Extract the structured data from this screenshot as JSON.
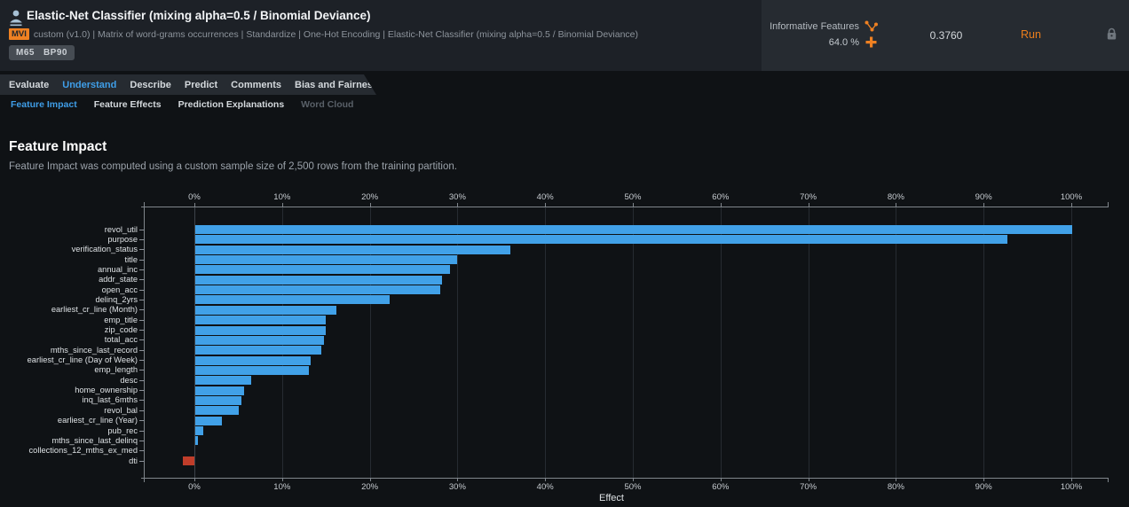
{
  "header": {
    "title": "Elastic-Net Classifier (mixing alpha=0.5 / Binomial Deviance)",
    "mvi_badge": "MVI",
    "blueprint": "custom (v1.0) | Matrix of word-grams occurrences | Standardize | One-Hot Encoding | Elastic-Net Classifier (mixing alpha=0.5 / Binomial Deviance)",
    "model_badges": [
      "M65",
      "BP90"
    ],
    "featurelist_label": "Informative Features",
    "sample_size_pct": "64.0 %",
    "metric_value": "0.3760",
    "run_label": "Run"
  },
  "tabs": [
    {
      "label": "Evaluate",
      "active": false
    },
    {
      "label": "Understand",
      "active": true
    },
    {
      "label": "Describe",
      "active": false
    },
    {
      "label": "Predict",
      "active": false
    },
    {
      "label": "Comments",
      "active": false
    },
    {
      "label": "Bias and Fairness",
      "active": false
    }
  ],
  "subtabs": [
    {
      "label": "Feature Impact",
      "state": "active"
    },
    {
      "label": "Feature Effects",
      "state": "normal"
    },
    {
      "label": "Prediction Explanations",
      "state": "normal"
    },
    {
      "label": "Word Cloud",
      "state": "disabled"
    }
  ],
  "section": {
    "title": "Feature Impact",
    "description": "Feature Impact was computed using a custom sample size of 2,500 rows from the training partition."
  },
  "chart_data": {
    "type": "bar",
    "orientation": "horizontal",
    "title": "Feature Impact",
    "xlabel": "Effect",
    "ylabel": "",
    "x_ticks": [
      "0%",
      "10%",
      "20%",
      "30%",
      "40%",
      "50%",
      "60%",
      "70%",
      "80%",
      "90%",
      "100%"
    ],
    "xlim_pct": [
      -5.8,
      104
    ],
    "grid": true,
    "bar_color": "#41a1e8",
    "negative_bar_color": "#c03d2a",
    "categories": [
      "revol_util",
      "purpose",
      "verification_status",
      "title",
      "annual_inc",
      "addr_state",
      "open_acc",
      "delinq_2yrs",
      "earliest_cr_line (Month)",
      "emp_title",
      "zip_code",
      "total_acc",
      "mths_since_last_record",
      "earliest_cr_line (Day of Week)",
      "emp_length",
      "desc",
      "home_ownership",
      "inq_last_6mths",
      "revol_bal",
      "earliest_cr_line (Year)",
      "pub_rec",
      "mths_since_last_delinq",
      "collections_12_mths_ex_med",
      "dti"
    ],
    "values": [
      100,
      92.6,
      35.9,
      29.9,
      29.0,
      28.1,
      27.9,
      22.2,
      16.1,
      14.9,
      14.9,
      14.7,
      14.4,
      13.2,
      13.0,
      6.4,
      5.6,
      5.3,
      5.0,
      3.0,
      0.9,
      0.3,
      0.0,
      -1.3
    ]
  },
  "colors": {
    "accent_blue": "#3f9ee8",
    "accent_orange": "#ef8122",
    "bar_blue": "#41a1e8",
    "bar_red": "#c03d2a",
    "header_bg": "#1d2127",
    "panel_bg": "#262b31"
  }
}
